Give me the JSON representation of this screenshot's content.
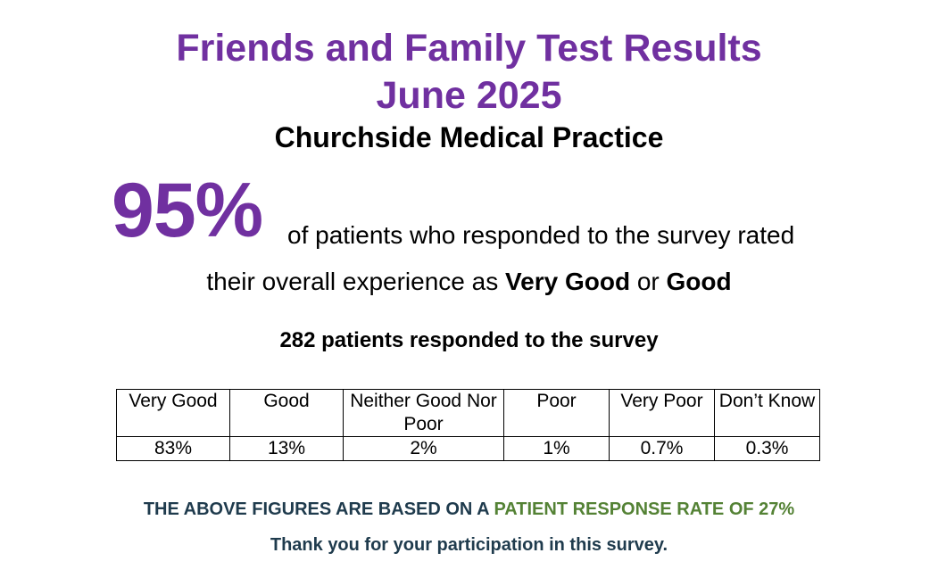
{
  "colors": {
    "title_purple": "#7030a0",
    "footer_dark": "#1f3b4d",
    "footer_green": "#548235"
  },
  "header": {
    "title_line1": "Friends and Family Test Results",
    "title_line2": "June 2025",
    "practice_name": "Churchside Medical Practice"
  },
  "summary": {
    "headline_percent": "95%",
    "text_part1": "of patients who responded to the survey rated",
    "text_part2": "their overall experience as ",
    "rating1": "Very Good",
    "text_or": " or ",
    "rating2": "Good",
    "respondents": "282 patients responded to the survey"
  },
  "table": {
    "headers": [
      "Very Good",
      "Good",
      "Neither Good Nor Poor",
      "Poor",
      "Very Poor",
      "Don’t Know"
    ],
    "values": [
      "83%",
      "13%",
      "2%",
      "1%",
      "0.7%",
      "0.3%"
    ]
  },
  "footer": {
    "response_prefix": "THE ABOVE FIGURES ARE BASED ON A ",
    "response_rate": "PATIENT RESPONSE RATE OF 27%",
    "thanks": "Thank you for your participation in this survey."
  }
}
